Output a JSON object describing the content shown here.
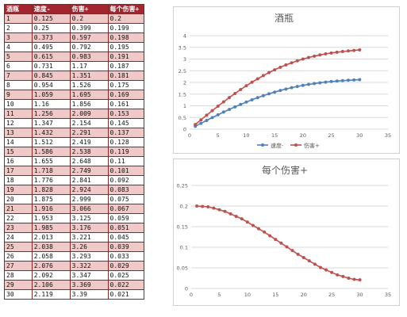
{
  "table": {
    "headers": [
      "酒瓶",
      "速度-",
      "伤害+",
      "每个伤害+"
    ],
    "rows": [
      [
        "1",
        "0.125",
        "0.2",
        "0.2"
      ],
      [
        "2",
        "0.25",
        "0.399",
        "0.199"
      ],
      [
        "3",
        "0.373",
        "0.597",
        "0.198"
      ],
      [
        "4",
        "0.495",
        "0.792",
        "0.195"
      ],
      [
        "5",
        "0.615",
        "0.983",
        "0.191"
      ],
      [
        "6",
        "0.731",
        "1.17",
        "0.187"
      ],
      [
        "7",
        "0.845",
        "1.351",
        "0.181"
      ],
      [
        "8",
        "0.954",
        "1.526",
        "0.175"
      ],
      [
        "9",
        "1.059",
        "1.695",
        "0.169"
      ],
      [
        "10",
        "1.16",
        "1.856",
        "0.161"
      ],
      [
        "11",
        "1.256",
        "2.009",
        "0.153"
      ],
      [
        "12",
        "1.347",
        "2.154",
        "0.145"
      ],
      [
        "13",
        "1.432",
        "2.291",
        "0.137"
      ],
      [
        "14",
        "1.512",
        "2.419",
        "0.128"
      ],
      [
        "15",
        "1.586",
        "2.538",
        "0.119"
      ],
      [
        "16",
        "1.655",
        "2.648",
        "0.11"
      ],
      [
        "17",
        "1.718",
        "2.749",
        "0.101"
      ],
      [
        "18",
        "1.776",
        "2.841",
        "0.092"
      ],
      [
        "19",
        "1.828",
        "2.924",
        "0.083"
      ],
      [
        "20",
        "1.875",
        "2.999",
        "0.075"
      ],
      [
        "21",
        "1.916",
        "3.066",
        "0.067"
      ],
      [
        "22",
        "1.953",
        "3.125",
        "0.059"
      ],
      [
        "23",
        "1.985",
        "3.176",
        "0.051"
      ],
      [
        "24",
        "2.013",
        "3.221",
        "0.045"
      ],
      [
        "25",
        "2.038",
        "3.26",
        "0.039"
      ],
      [
        "26",
        "2.058",
        "3.293",
        "0.033"
      ],
      [
        "27",
        "2.076",
        "3.322",
        "0.029"
      ],
      [
        "28",
        "2.092",
        "3.347",
        "0.025"
      ],
      [
        "29",
        "2.106",
        "3.369",
        "0.022"
      ],
      [
        "30",
        "2.119",
        "3.39",
        "0.021"
      ]
    ]
  },
  "colors": {
    "header_bg": "#a3262f",
    "row_odd": "#efc8c8",
    "series_blue": "#4f81bd",
    "series_red": "#c0504d",
    "grid": "#d9d9d9"
  },
  "chart_data": [
    {
      "type": "scatter",
      "title": "酒瓶",
      "xlim": [
        0,
        35
      ],
      "ylim": [
        0,
        4
      ],
      "xticks": [
        "0",
        "5",
        "10",
        "15",
        "20",
        "25",
        "30",
        "35"
      ],
      "yticks": [
        "0",
        "0.5",
        "1",
        "1.5",
        "2",
        "2.5",
        "3",
        "3.5",
        "4"
      ],
      "grid": "horizontal",
      "legend": "bottom",
      "x": [
        1,
        2,
        3,
        4,
        5,
        6,
        7,
        8,
        9,
        10,
        11,
        12,
        13,
        14,
        15,
        16,
        17,
        18,
        19,
        20,
        21,
        22,
        23,
        24,
        25,
        26,
        27,
        28,
        29,
        30
      ],
      "series": [
        {
          "name": "速度-",
          "color": "#4f81bd",
          "values": [
            0.125,
            0.25,
            0.373,
            0.495,
            0.615,
            0.731,
            0.845,
            0.954,
            1.059,
            1.16,
            1.256,
            1.347,
            1.432,
            1.512,
            1.586,
            1.655,
            1.718,
            1.776,
            1.828,
            1.875,
            1.916,
            1.953,
            1.985,
            2.013,
            2.038,
            2.058,
            2.076,
            2.092,
            2.106,
            2.119
          ]
        },
        {
          "name": "伤害+",
          "color": "#c0504d",
          "values": [
            0.2,
            0.399,
            0.597,
            0.792,
            0.983,
            1.17,
            1.351,
            1.526,
            1.695,
            1.856,
            2.009,
            2.154,
            2.291,
            2.419,
            2.538,
            2.648,
            2.749,
            2.841,
            2.924,
            2.999,
            3.066,
            3.125,
            3.176,
            3.221,
            3.26,
            3.293,
            3.322,
            3.347,
            3.369,
            3.39
          ]
        }
      ]
    },
    {
      "type": "scatter",
      "title": "每个伤害+",
      "xlim": [
        0,
        35
      ],
      "ylim": [
        0,
        0.25
      ],
      "xticks": [
        "0",
        "5",
        "10",
        "15",
        "20",
        "25",
        "30",
        "35"
      ],
      "yticks": [
        "0",
        "0.05",
        "0.1",
        "0.15",
        "0.2",
        "0.25"
      ],
      "grid": "horizontal",
      "legend": "none",
      "x": [
        1,
        2,
        3,
        4,
        5,
        6,
        7,
        8,
        9,
        10,
        11,
        12,
        13,
        14,
        15,
        16,
        17,
        18,
        19,
        20,
        21,
        22,
        23,
        24,
        25,
        26,
        27,
        28,
        29,
        30
      ],
      "series": [
        {
          "color": "#c0504d",
          "values": [
            0.2,
            0.199,
            0.198,
            0.195,
            0.191,
            0.187,
            0.181,
            0.175,
            0.169,
            0.161,
            0.153,
            0.145,
            0.137,
            0.128,
            0.119,
            0.11,
            0.101,
            0.092,
            0.083,
            0.075,
            0.067,
            0.059,
            0.051,
            0.045,
            0.039,
            0.033,
            0.029,
            0.025,
            0.022,
            0.021
          ]
        }
      ]
    }
  ]
}
